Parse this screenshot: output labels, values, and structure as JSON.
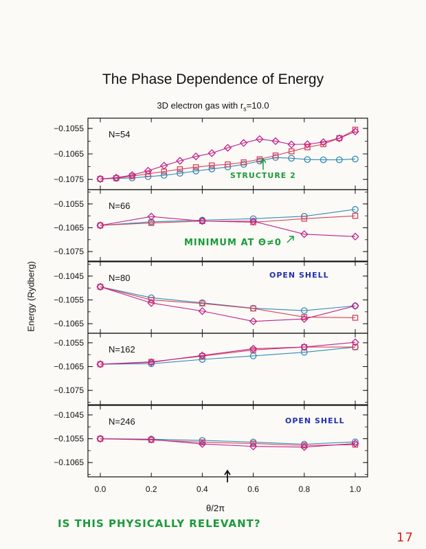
{
  "chart_data": {
    "type": "line",
    "title": "The Phase Dependence of Energy",
    "subtitle": "3D electron gas with r",
    "subtitle_sub": "s",
    "subtitle_tail": "=10.0",
    "xlabel": "θ/2π",
    "ylabel": "Energy (Rydberg)",
    "xlim": [
      0,
      1
    ],
    "xticks": [
      "0.0",
      "0.2",
      "0.4",
      "0.6",
      "0.8",
      "1.0"
    ],
    "colors": {
      "blue": "#2e8ab8",
      "red": "#d8405a",
      "magenta": "#c0208a"
    },
    "panels": [
      {
        "label": "N=54",
        "ylim": [
          -0.1079,
          -0.1051
        ],
        "yticks": [
          "-0.1055",
          "-0.1065",
          "-0.1075"
        ],
        "series": [
          {
            "name": "blue circles",
            "marker": "circle",
            "color": "#2e8ab8",
            "x": [
              0,
              0.0625,
              0.125,
              0.1875,
              0.25,
              0.3125,
              0.375,
              0.4375,
              0.5,
              0.5625,
              0.625,
              0.6875,
              0.75,
              0.8125,
              0.875,
              0.9375,
              1.0
            ],
            "y": [
              -0.10748,
              -0.10746,
              -0.10744,
              -0.10739,
              -0.10734,
              -0.10726,
              -0.10717,
              -0.10709,
              -0.10701,
              -0.10691,
              -0.10678,
              -0.10664,
              -0.10667,
              -0.10672,
              -0.10673,
              -0.10673,
              -0.1067
            ]
          },
          {
            "name": "red squares",
            "marker": "square",
            "color": "#d8405a",
            "x": [
              0,
              0.0625,
              0.125,
              0.1875,
              0.25,
              0.3125,
              0.375,
              0.4375,
              0.5,
              0.5625,
              0.625,
              0.6875,
              0.75,
              0.8125,
              0.875,
              0.9375,
              1.0
            ],
            "y": [
              -0.10748,
              -0.10745,
              -0.10737,
              -0.10728,
              -0.10719,
              -0.1071,
              -0.10702,
              -0.10695,
              -0.10691,
              -0.10683,
              -0.10671,
              -0.10656,
              -0.1064,
              -0.10624,
              -0.10612,
              -0.10588,
              -0.10555
            ]
          },
          {
            "name": "magenta diamonds",
            "marker": "diamond",
            "color": "#c0208a",
            "x": [
              0,
              0.0625,
              0.125,
              0.1875,
              0.25,
              0.3125,
              0.375,
              0.4375,
              0.5,
              0.5625,
              0.625,
              0.6875,
              0.75,
              0.8125,
              0.875,
              0.9375,
              1.0
            ],
            "y": [
              -0.10748,
              -0.10743,
              -0.10733,
              -0.10716,
              -0.10696,
              -0.10677,
              -0.1066,
              -0.10647,
              -0.10626,
              -0.10607,
              -0.10592,
              -0.106,
              -0.10613,
              -0.10612,
              -0.10604,
              -0.10589,
              -0.10562
            ]
          }
        ]
      },
      {
        "label": "N=66",
        "ylim": [
          -0.1079,
          -0.1049
        ],
        "yticks": [
          "-0.1055",
          "-0.1065",
          "-0.1075"
        ],
        "series": [
          {
            "name": "blue circles",
            "marker": "circle",
            "color": "#2e8ab8",
            "x": [
              0,
              0.2,
              0.4,
              0.6,
              0.8,
              1.0
            ],
            "y": [
              -0.1064,
              -0.10625,
              -0.10618,
              -0.10612,
              -0.10602,
              -0.10573
            ]
          },
          {
            "name": "red squares",
            "marker": "square",
            "color": "#d8405a",
            "x": [
              0,
              0.2,
              0.4,
              0.6,
              0.8,
              1.0
            ],
            "y": [
              -0.1064,
              -0.1063,
              -0.10622,
              -0.10627,
              -0.10612,
              -0.106
            ]
          },
          {
            "name": "magenta diamonds",
            "marker": "diamond",
            "color": "#c0208a",
            "x": [
              0,
              0.2,
              0.4,
              0.6,
              0.8,
              1.0
            ],
            "y": [
              -0.1064,
              -0.10603,
              -0.10622,
              -0.10623,
              -0.10677,
              -0.10687
            ]
          }
        ]
      },
      {
        "label": "N=80",
        "ylim": [
          -0.1069,
          -0.1039
        ],
        "yticks": [
          "-0.1045",
          "-0.1055",
          "-0.1065"
        ],
        "series": [
          {
            "name": "blue circles",
            "marker": "circle",
            "color": "#2e8ab8",
            "x": [
              0,
              0.2,
              0.4,
              0.6,
              0.8,
              1.0
            ],
            "y": [
              -0.10495,
              -0.10541,
              -0.10562,
              -0.10585,
              -0.10595,
              -0.10575
            ]
          },
          {
            "name": "red squares",
            "marker": "square",
            "color": "#d8405a",
            "x": [
              0,
              0.2,
              0.4,
              0.6,
              0.8,
              1.0
            ],
            "y": [
              -0.10495,
              -0.1055,
              -0.10565,
              -0.10586,
              -0.10622,
              -0.10625
            ]
          },
          {
            "name": "magenta diamonds",
            "marker": "diamond",
            "color": "#c0208a",
            "x": [
              0,
              0.2,
              0.4,
              0.6,
              0.8,
              1.0
            ],
            "y": [
              -0.10495,
              -0.10563,
              -0.10597,
              -0.1064,
              -0.1063,
              -0.10575
            ]
          }
        ]
      },
      {
        "label": "N=162",
        "ylim": [
          -0.1081,
          -0.1051
        ],
        "yticks": [
          "-0.1055",
          "-0.1065",
          "-0.1075"
        ],
        "series": [
          {
            "name": "blue circles",
            "marker": "circle",
            "color": "#2e8ab8",
            "x": [
              0,
              0.2,
              0.4,
              0.6,
              0.8,
              1.0
            ],
            "y": [
              -0.1064,
              -0.10638,
              -0.1062,
              -0.10605,
              -0.1059,
              -0.10568
            ]
          },
          {
            "name": "red squares",
            "marker": "square",
            "color": "#d8405a",
            "x": [
              0,
              0.2,
              0.4,
              0.6,
              0.8,
              1.0
            ],
            "y": [
              -0.1064,
              -0.1063,
              -0.10606,
              -0.1058,
              -0.10568,
              -0.10568
            ]
          },
          {
            "name": "magenta diamonds",
            "marker": "diamond",
            "color": "#c0208a",
            "x": [
              0,
              0.2,
              0.4,
              0.6,
              0.8,
              1.0
            ],
            "y": [
              -0.1064,
              -0.10632,
              -0.10603,
              -0.10575,
              -0.10568,
              -0.10548
            ]
          }
        ]
      },
      {
        "label": "N=246",
        "ylim": [
          -0.1071,
          -0.1041
        ],
        "yticks": [
          "-0.1045",
          "-0.1055",
          "-0.1065"
        ],
        "series": [
          {
            "name": "blue circles",
            "marker": "circle",
            "color": "#2e8ab8",
            "x": [
              0,
              0.2,
              0.4,
              0.6,
              0.8,
              1.0
            ],
            "y": [
              -0.1055,
              -0.10552,
              -0.10557,
              -0.10564,
              -0.10573,
              -0.10563
            ]
          },
          {
            "name": "red squares",
            "marker": "square",
            "color": "#d8405a",
            "x": [
              0,
              0.2,
              0.4,
              0.6,
              0.8,
              1.0
            ],
            "y": [
              -0.1055,
              -0.10555,
              -0.10565,
              -0.1057,
              -0.10578,
              -0.10575
            ]
          },
          {
            "name": "magenta diamonds",
            "marker": "diamond",
            "color": "#c0208a",
            "x": [
              0,
              0.2,
              0.4,
              0.6,
              0.8,
              1.0
            ],
            "y": [
              -0.1055,
              -0.10553,
              -0.10572,
              -0.10582,
              -0.10585,
              -0.1057
            ]
          }
        ]
      }
    ]
  },
  "annotations": {
    "structure": "STRUCTURE 2",
    "minimum": "MINIMUM AT Θ≠0",
    "open_shell_80": "OPEN SHELL",
    "open_shell_246": "OPEN SHELL",
    "question": "IS THIS PHYSICALLY RELEVANT?",
    "page_number": "17",
    "green": "#1a9a3a",
    "blue": "#2030b0",
    "red": "#e02020"
  }
}
